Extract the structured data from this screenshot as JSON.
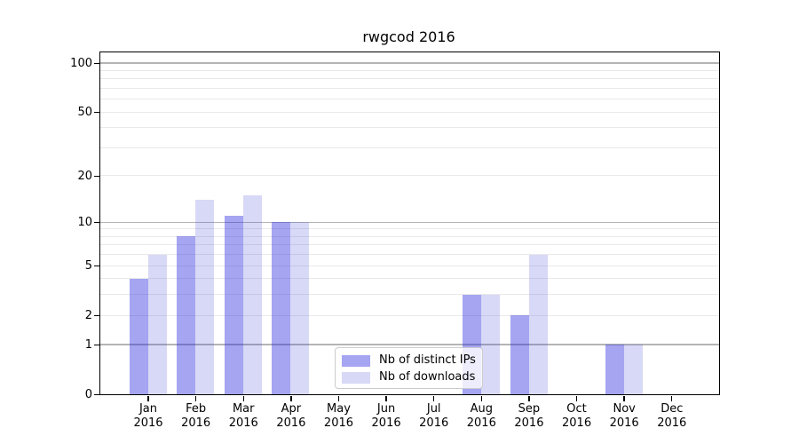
{
  "title": "rwgcod 2016",
  "legend": {
    "items": [
      {
        "label": "Nb of distinct IPs",
        "color": "#a5a5f2"
      },
      {
        "label": "Nb of downloads",
        "color": "#d8d8f7"
      }
    ]
  },
  "chart_data": {
    "type": "bar",
    "title": "rwgcod 2016",
    "categories": [
      "Jan",
      "Feb",
      "Mar",
      "Apr",
      "May",
      "Jun",
      "Jul",
      "Aug",
      "Sep",
      "Oct",
      "Nov",
      "Dec"
    ],
    "year": "2016",
    "series": [
      {
        "name": "Nb of distinct IPs",
        "values": [
          4,
          8,
          11,
          10,
          0,
          0,
          0,
          3,
          2,
          0,
          1,
          0
        ],
        "color": "#2828e0",
        "alpha": 0.42,
        "legend_color": "#a5a5f2"
      },
      {
        "name": "Nb of downloads",
        "values": [
          6,
          14,
          15,
          10,
          0,
          0,
          0,
          3,
          6,
          0,
          1,
          0
        ],
        "color": "#3c3cd7",
        "alpha": 0.2,
        "legend_color": "#d8d8f7"
      }
    ],
    "yscale": "log10(1+x)",
    "ylim": [
      0,
      116
    ],
    "y_ticks": [
      100,
      50,
      20,
      10,
      5,
      2,
      1,
      0
    ],
    "y_major_gridlines": [
      1,
      10,
      100
    ],
    "y_minor_gridlines": [
      2,
      3,
      4,
      5,
      6,
      7,
      8,
      9,
      20,
      30,
      40,
      50,
      60,
      70,
      80,
      90
    ],
    "grid": "horizontal",
    "legend_position": "inside axes, lower center"
  }
}
